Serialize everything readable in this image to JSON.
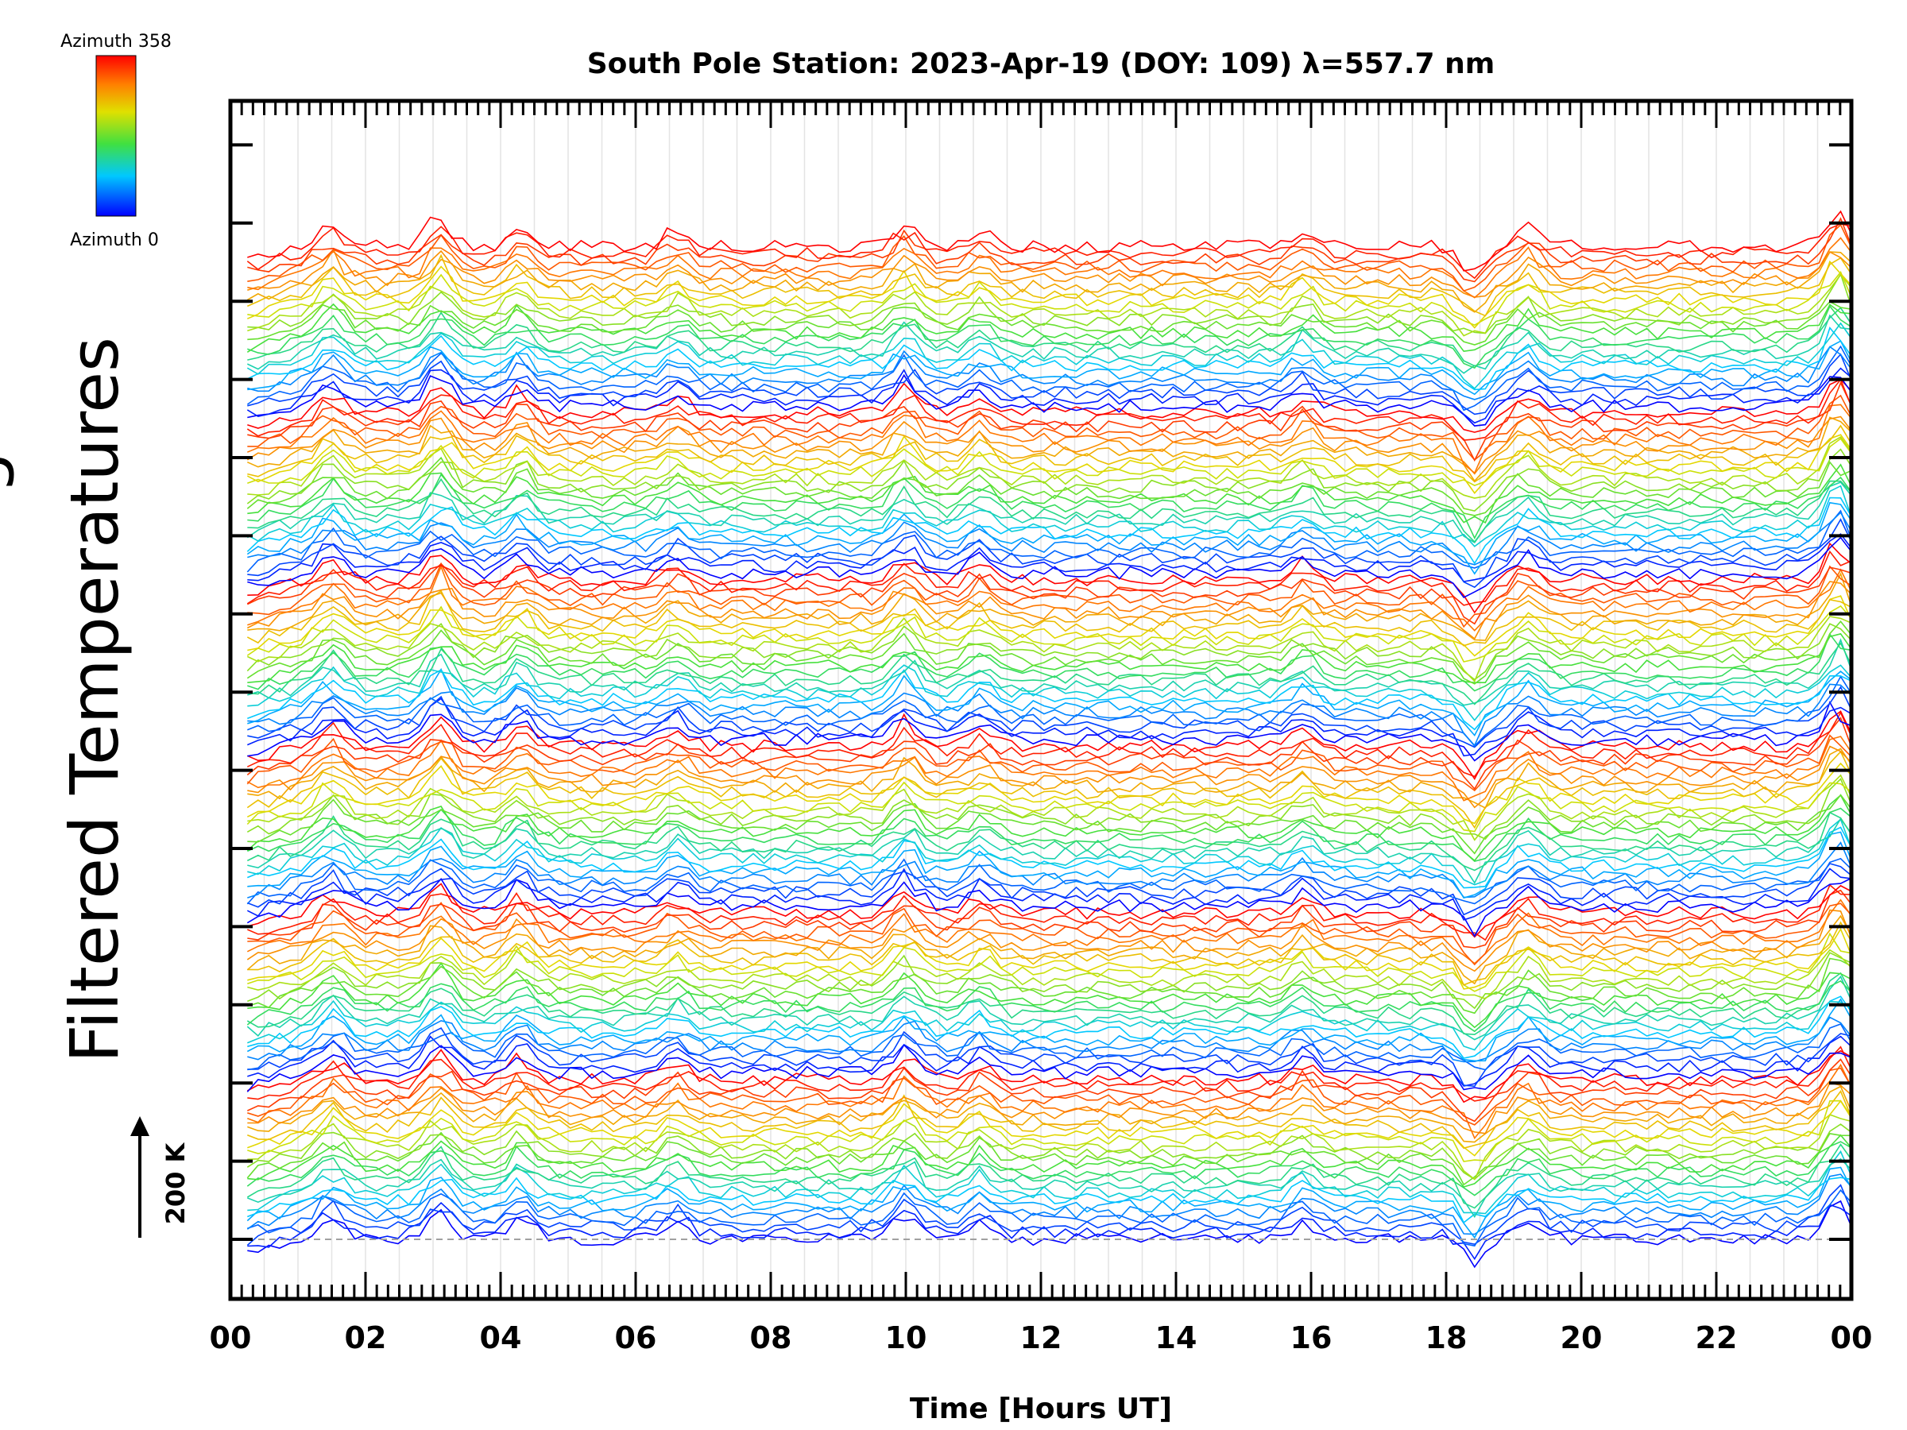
{
  "chart_data": {
    "type": "line",
    "title": "South Pole Station: 2023-Apr-19 (DOY: 109) λ=557.7 nm",
    "xlabel": "Time [Hours UT]",
    "ylabel": "Filtered Temperatures",
    "x_tick_labels": [
      "00",
      "02",
      "04",
      "06",
      "08",
      "10",
      "12",
      "14",
      "16",
      "18",
      "20",
      "22",
      "00"
    ],
    "xlim_hours": [
      0,
      24
    ],
    "grid": true,
    "colorbar": {
      "top_label": "Azimuth 358",
      "bottom_label": "Azimuth 0",
      "colormap": "rainbow (blue-green-yellow-red)",
      "colors": [
        "#0000ff",
        "#00c8ff",
        "#40e040",
        "#e0e000",
        "#ff8000",
        "#ff0000"
      ]
    },
    "scale_bar": {
      "label": "200 K"
    },
    "n_traces": 150,
    "trace_offset_kelvin": 50,
    "common_features_hours": [
      {
        "hour": 1.5,
        "amplitude_kelvin": 40
      },
      {
        "hour": 3.1,
        "amplitude_kelvin": 55
      },
      {
        "hour": 4.3,
        "amplitude_kelvin": 40
      },
      {
        "hour": 6.6,
        "amplitude_kelvin": 30
      },
      {
        "hour": 10.0,
        "amplitude_kelvin": 45
      },
      {
        "hour": 11.1,
        "amplitude_kelvin": 30
      },
      {
        "hour": 15.9,
        "amplitude_kelvin": 30
      },
      {
        "hour": 18.4,
        "amplitude_kelvin": -50
      },
      {
        "hour": 19.2,
        "amplitude_kelvin": 35
      },
      {
        "hour": 23.8,
        "amplitude_kelvin": 70
      }
    ]
  }
}
